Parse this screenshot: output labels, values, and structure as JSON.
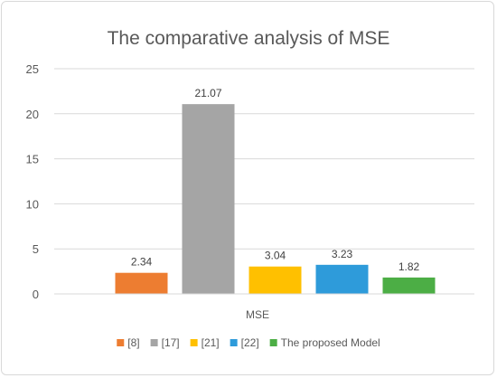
{
  "chart_data": {
    "type": "bar",
    "title": "The comparative analysis of MSE",
    "categories": [
      "MSE"
    ],
    "series": [
      {
        "name": "[8]",
        "values": [
          2.34
        ],
        "color": "#ED7D31"
      },
      {
        "name": "[17]",
        "values": [
          21.07
        ],
        "color": "#A5A5A5"
      },
      {
        "name": "[21]",
        "values": [
          3.04
        ],
        "color": "#FFC000"
      },
      {
        "name": "[22]",
        "values": [
          3.23
        ],
        "color": "#2E9BDA"
      },
      {
        "name": "The proposed Model",
        "values": [
          1.82
        ],
        "color": "#4CAE45"
      }
    ],
    "data_labels": [
      "2.34",
      "21.07",
      "3.04",
      "3.23",
      "1.82"
    ],
    "ylim": [
      0,
      25
    ],
    "yticks": [
      "0",
      "5",
      "10",
      "15",
      "20",
      "25"
    ],
    "grid": "horizontal",
    "legend": "bottom"
  }
}
